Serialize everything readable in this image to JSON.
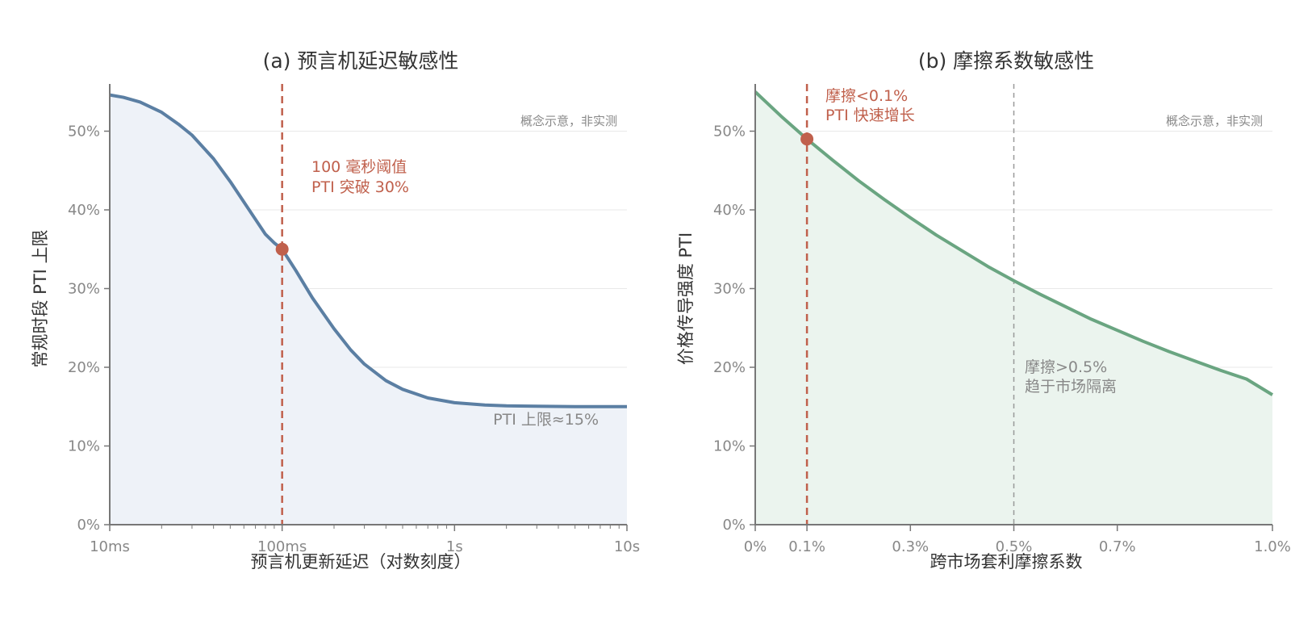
{
  "colors": {
    "curve_a": "#5b7fa3",
    "fill_a": "#eef2f8",
    "curve_b": "#6aa581",
    "fill_b": "#ebf4ee",
    "highlight": "#c0604c",
    "grid": "#e8e8e8",
    "axis": "#777777",
    "ref_line": "#999999"
  },
  "chart_data": [
    {
      "type": "line",
      "title": "(a) 预言机延迟敏感性",
      "xlabel": "预言机更新延迟（对数刻度）",
      "ylabel": "常规时段 PTI 上限",
      "xscale": "log",
      "xlim_ms": [
        10,
        10000
      ],
      "ylim": [
        0,
        56
      ],
      "xticks": [
        {
          "value_ms": 10,
          "label": "10ms"
        },
        {
          "value_ms": 100,
          "label": "100ms"
        },
        {
          "value_ms": 1000,
          "label": "1s"
        },
        {
          "value_ms": 10000,
          "label": "10s"
        }
      ],
      "yticks": [
        {
          "value": 0,
          "label": "0%"
        },
        {
          "value": 10,
          "label": "10%"
        },
        {
          "value": 20,
          "label": "20%"
        },
        {
          "value": 30,
          "label": "30%"
        },
        {
          "value": 40,
          "label": "40%"
        },
        {
          "value": 50,
          "label": "50%"
        }
      ],
      "grid": true,
      "series": [
        {
          "x_ms": [
            10,
            12,
            15,
            20,
            25,
            30,
            40,
            50,
            60,
            70,
            80,
            90,
            100,
            120,
            150,
            200,
            250,
            300,
            400,
            500,
            700,
            1000,
            1500,
            2000,
            3000,
            5000,
            7000,
            10000
          ],
          "y": [
            54.6,
            54.3,
            53.7,
            52.4,
            50.9,
            49.5,
            46.5,
            43.6,
            41.0,
            38.8,
            36.9,
            35.8,
            35.0,
            32.3,
            28.8,
            24.9,
            22.2,
            20.4,
            18.3,
            17.2,
            16.1,
            15.5,
            15.2,
            15.1,
            15.05,
            15.0,
            15.0,
            15.0
          ]
        }
      ],
      "highlight_point": {
        "x_ms": 100,
        "y": 35
      },
      "annotations": {
        "threshold_line1": "100 毫秒阈值",
        "threshold_line2": "PTI 突破 30%",
        "plateau": "PTI 上限≈15%",
        "note": "概念示意，非实测"
      }
    },
    {
      "type": "line",
      "title": "(b) 摩擦系数敏感性",
      "xlabel": "跨市场套利摩擦系数",
      "ylabel": "价格传导强度 PTI",
      "xlim": [
        0,
        1.0
      ],
      "ylim": [
        0,
        56
      ],
      "xticks": [
        {
          "value": 0,
          "label": "0%"
        },
        {
          "value": 0.1,
          "label": "0.1%"
        },
        {
          "value": 0.3,
          "label": "0.3%"
        },
        {
          "value": 0.5,
          "label": "0.5%"
        },
        {
          "value": 0.7,
          "label": "0.7%"
        },
        {
          "value": 1.0,
          "label": "1.0%"
        }
      ],
      "yticks": [
        {
          "value": 0,
          "label": "0%"
        },
        {
          "value": 10,
          "label": "10%"
        },
        {
          "value": 20,
          "label": "20%"
        },
        {
          "value": 30,
          "label": "30%"
        },
        {
          "value": 40,
          "label": "40%"
        },
        {
          "value": 50,
          "label": "50%"
        }
      ],
      "grid": true,
      "series": [
        {
          "x": [
            0,
            0.05,
            0.1,
            0.15,
            0.2,
            0.25,
            0.3,
            0.35,
            0.4,
            0.45,
            0.5,
            0.55,
            0.6,
            0.65,
            0.7,
            0.75,
            0.8,
            0.85,
            0.9,
            0.95,
            1.0
          ],
          "y": [
            55.0,
            51.9,
            49.0,
            46.3,
            43.7,
            41.3,
            39.0,
            36.8,
            34.8,
            32.8,
            31.0,
            29.3,
            27.7,
            26.1,
            24.7,
            23.3,
            22.0,
            20.8,
            19.6,
            18.5,
            16.5
          ]
        }
      ],
      "highlight_point": {
        "x": 0.1,
        "y": 49
      },
      "reference_x": 0.5,
      "annotations": {
        "low_line1": "摩擦<0.1%",
        "low_line2": "PTI 快速增长",
        "high_line1": "摩擦>0.5%",
        "high_line2": "趋于市场隔离",
        "note": "概念示意，非实测"
      }
    }
  ]
}
